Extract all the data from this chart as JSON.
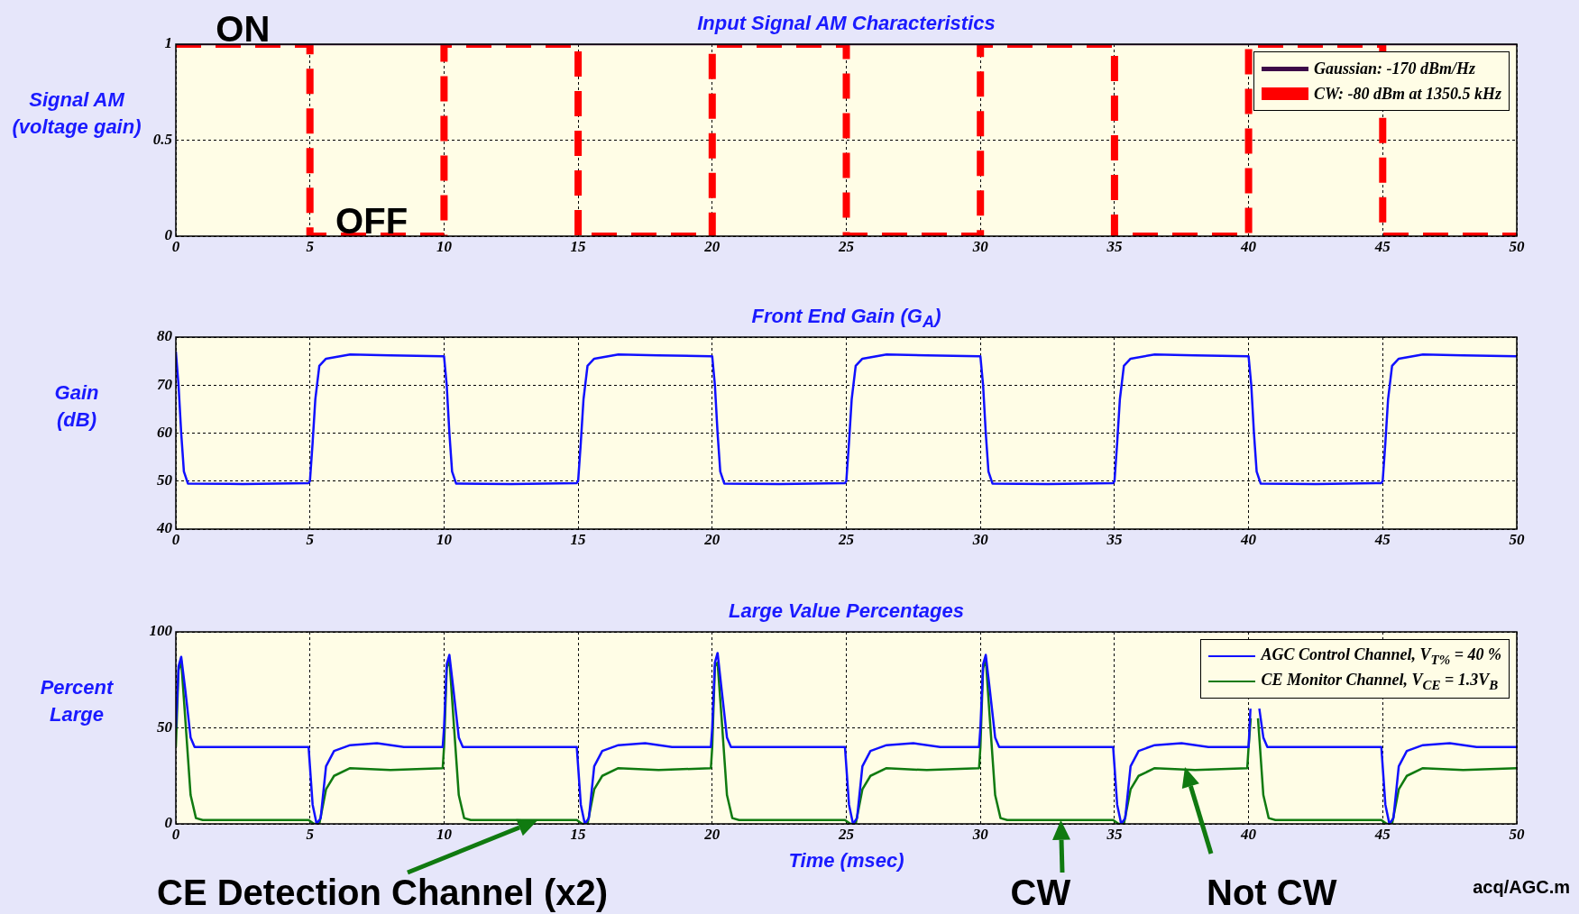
{
  "chart_data": [
    {
      "type": "line",
      "title": "Input Signal AM Characteristics",
      "ylabel": "Signal AM\n(voltage gain)",
      "xlim": [
        0,
        50
      ],
      "xticks": [
        0,
        5,
        10,
        15,
        20,
        25,
        30,
        35,
        40,
        45,
        50
      ],
      "ylim": [
        0,
        1
      ],
      "yticks": [
        0,
        0.5,
        1
      ],
      "grid": true,
      "legend": "top right",
      "marker": "none",
      "series": [
        {
          "name": "Gaussian: -170 dBm/Hz",
          "color": "#3c0a48",
          "x": [
            0,
            50
          ],
          "values": [
            1,
            1
          ]
        },
        {
          "name": "CW: -80 dBm at 1350.5 kHz",
          "color": "#ff0000",
          "line_style": "dashed",
          "x": [
            0,
            5,
            5,
            10,
            10,
            15,
            15,
            20,
            20,
            25,
            25,
            30,
            30,
            35,
            35,
            40,
            40,
            45,
            45,
            50
          ],
          "values": [
            1,
            1,
            0,
            0,
            1,
            1,
            0,
            0,
            1,
            1,
            0,
            0,
            1,
            1,
            0,
            0,
            1,
            1,
            0,
            0
          ]
        }
      ],
      "annotations": [
        {
          "text": "ON",
          "x": 2.5,
          "y": 1
        },
        {
          "text": "OFF",
          "x": 7.3,
          "y": 0
        }
      ]
    },
    {
      "type": "line",
      "title": "Front End Gain (G$_{A}$)",
      "ylabel": "Gain\n(dB)",
      "xlim": [
        0,
        50
      ],
      "xticks": [
        0,
        5,
        10,
        15,
        20,
        25,
        30,
        35,
        40,
        45,
        50
      ],
      "ylim": [
        40,
        80
      ],
      "yticks": [
        40,
        50,
        60,
        70,
        80
      ],
      "grid": true,
      "marker": "none",
      "series": [
        {
          "color": "#1010ff",
          "x": [
            0,
            0.1,
            0.2,
            0.3,
            0.45,
            2.5,
            4.95,
            5,
            5.1,
            5.2,
            5.35,
            5.6,
            6.5,
            8,
            9.95,
            10,
            10.1,
            10.2,
            10.3,
            10.45,
            12.5,
            14.95,
            15,
            15.1,
            15.2,
            15.35,
            15.6,
            16.5,
            18,
            19.95,
            20,
            20.1,
            20.2,
            20.3,
            20.45,
            22.5,
            24.95,
            25,
            25.1,
            25.2,
            25.35,
            25.6,
            26.5,
            28,
            29.95,
            30,
            30.1,
            30.2,
            30.3,
            30.45,
            32.5,
            34.95,
            35,
            35.1,
            35.2,
            35.35,
            35.6,
            36.5,
            38,
            39.95,
            40,
            40.1,
            40.2,
            40.3,
            40.45,
            42.5,
            44.95,
            45,
            45.1,
            45.2,
            45.35,
            45.6,
            46.5,
            48,
            50
          ],
          "values": [
            77,
            70,
            60,
            52,
            49.5,
            49.4,
            49.6,
            50,
            58,
            67,
            74,
            75.5,
            76.4,
            76.2,
            76,
            76,
            70,
            60,
            52,
            49.5,
            49.4,
            49.6,
            50,
            58,
            67,
            74,
            75.5,
            76.4,
            76.2,
            76,
            76,
            70,
            60,
            52,
            49.5,
            49.4,
            49.6,
            50,
            58,
            67,
            74,
            75.5,
            76.4,
            76.2,
            76,
            76,
            70,
            60,
            52,
            49.5,
            49.4,
            49.6,
            50,
            58,
            67,
            74,
            75.5,
            76.4,
            76.2,
            76,
            76,
            70,
            60,
            52,
            49.5,
            49.4,
            49.6,
            50,
            58,
            67,
            74,
            75.5,
            76.4,
            76.2,
            76
          ]
        }
      ]
    },
    {
      "type": "line",
      "title": "Large Value Percentages",
      "xlabel": "Time (msec)",
      "ylabel": "Percent\nLarge",
      "xlim": [
        0,
        50
      ],
      "xticks": [
        0,
        5,
        10,
        15,
        20,
        25,
        30,
        35,
        40,
        45,
        50
      ],
      "ylim": [
        0,
        100
      ],
      "yticks": [
        0,
        50,
        100
      ],
      "grid": true,
      "legend": "top right",
      "marker": "none",
      "series": [
        {
          "name": "AGC Control Channel, V$_{T%}$ = 40 %",
          "color": "#1010ff",
          "x": [
            0,
            0.1,
            0.2,
            0.35,
            0.55,
            0.7,
            2.5,
            4.95,
            5.1,
            5.25,
            5.4,
            5.6,
            5.9,
            6.5,
            7.5,
            8.5,
            9.95,
            10,
            10.1,
            10.2,
            10.35,
            10.55,
            10.7,
            12.5,
            14.95,
            15.1,
            15.25,
            15.4,
            15.6,
            15.9,
            16.5,
            17.5,
            18.5,
            19.95,
            20,
            20.1,
            20.2,
            20.35,
            20.55,
            20.7,
            22.5,
            24.95,
            25.1,
            25.25,
            25.4,
            25.6,
            25.9,
            26.5,
            27.5,
            28.5,
            29.95,
            30,
            30.1,
            30.2,
            30.35,
            30.55,
            30.7,
            32.5,
            34.95,
            35.1,
            35.25,
            35.4,
            35.6,
            35.9,
            36.5,
            37.5,
            38.5,
            39.95,
            40,
            40.07,
            40.2,
            40.4,
            40.55,
            40.7,
            42.5,
            44.95,
            45.1,
            45.25,
            45.4,
            45.6,
            45.9,
            46.5,
            47.5,
            48.5,
            50
          ],
          "values": [
            50,
            82,
            87,
            70,
            45,
            40,
            40,
            40,
            10,
            0,
            3,
            30,
            38,
            41,
            42,
            40,
            40,
            50,
            83,
            88,
            70,
            45,
            40,
            40,
            40,
            10,
            0,
            3,
            30,
            38,
            41,
            42,
            40,
            40,
            50,
            84,
            89,
            70,
            45,
            40,
            40,
            40,
            10,
            0,
            3,
            30,
            38,
            41,
            42,
            40,
            40,
            50,
            83,
            88,
            70,
            45,
            40,
            40,
            40,
            10,
            0,
            3,
            30,
            38,
            41,
            42,
            40,
            40,
            40,
            60,
            null,
            60,
            45,
            40,
            40,
            40,
            10,
            0,
            3,
            30,
            38,
            41,
            42,
            40,
            40
          ]
        },
        {
          "name": "CE Monitor Channel, V$_{CE}$ = 1.3V$_{B}$",
          "color": "#107a10",
          "x": [
            0,
            0.1,
            0.2,
            0.35,
            0.55,
            0.75,
            1,
            4.95,
            5.15,
            5.35,
            5.6,
            5.9,
            6.5,
            8,
            9.95,
            10,
            10.1,
            10.2,
            10.35,
            10.55,
            10.75,
            11,
            14.95,
            15.15,
            15.35,
            15.6,
            15.9,
            16.5,
            18,
            19.95,
            20,
            20.1,
            20.2,
            20.35,
            20.55,
            20.75,
            21,
            24.95,
            25.15,
            25.35,
            25.6,
            25.9,
            26.5,
            28,
            29.95,
            30,
            30.1,
            30.2,
            30.35,
            30.55,
            30.75,
            31,
            34.95,
            35.15,
            35.35,
            35.6,
            35.9,
            36.5,
            38,
            39.95,
            40,
            40.08,
            40.2,
            40.35,
            40.55,
            40.75,
            41,
            44.95,
            45.15,
            45.35,
            45.6,
            45.9,
            46.5,
            48,
            50
          ],
          "values": [
            40,
            80,
            85,
            55,
            15,
            3,
            2,
            2,
            0,
            0,
            18,
            25,
            29,
            28,
            29,
            40,
            81,
            86,
            55,
            15,
            3,
            2,
            2,
            0,
            0,
            18,
            25,
            29,
            28,
            29,
            40,
            82,
            84,
            55,
            15,
            3,
            2,
            2,
            0,
            0,
            18,
            25,
            29,
            28,
            29,
            40,
            81,
            86,
            55,
            15,
            3,
            2,
            2,
            0,
            0,
            18,
            25,
            29,
            28,
            29,
            40,
            55,
            null,
            55,
            15,
            3,
            2,
            2,
            0,
            0,
            18,
            25,
            29,
            28,
            29
          ]
        }
      ],
      "annotations": [
        {
          "text": "CE Detection Channel (x2)",
          "x": 13.5,
          "y": 2
        },
        {
          "text": "CW",
          "x": 33,
          "y": 2
        },
        "Not CW",
        "acq/AGC.m"
      ]
    }
  ]
}
